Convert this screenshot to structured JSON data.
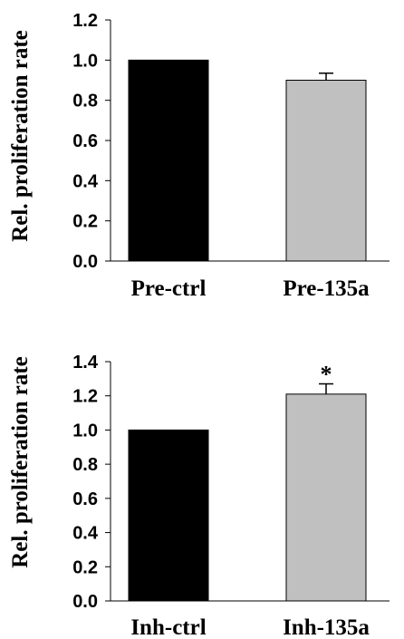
{
  "chart_data": [
    {
      "type": "bar",
      "ylabel": "Rel. proliferation rate",
      "categories": [
        "Pre-ctrl",
        "Pre-135a"
      ],
      "values": [
        1.0,
        0.9
      ],
      "errors": [
        0,
        0.035
      ],
      "bar_colors": [
        "#000000",
        "#c0c0c0"
      ],
      "ylim": [
        0,
        1.2
      ],
      "yticks": [
        "0.0",
        "0.2",
        "0.4",
        "0.6",
        "0.8",
        "1.0",
        "1.2"
      ],
      "annotations": [
        "",
        ""
      ],
      "grid": false
    },
    {
      "type": "bar",
      "ylabel": "Rel. proliferation rate",
      "categories": [
        "Inh-ctrl",
        "Inh-135a"
      ],
      "values": [
        1.0,
        1.21
      ],
      "errors": [
        0,
        0.06
      ],
      "bar_colors": [
        "#000000",
        "#c0c0c0"
      ],
      "ylim": [
        0,
        1.4
      ],
      "yticks": [
        "0.0",
        "0.2",
        "0.4",
        "0.6",
        "0.8",
        "1.0",
        "1.2",
        "1.4"
      ],
      "annotations": [
        "",
        "*"
      ],
      "grid": false
    }
  ]
}
